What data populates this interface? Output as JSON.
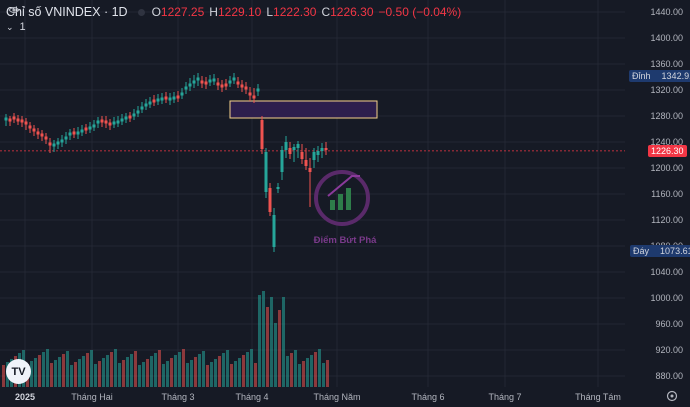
{
  "header": {
    "title": "Chỉ số VNINDEX · 1D",
    "open_label": "O",
    "open": "1227.25",
    "high_label": "H",
    "high": "1229.10",
    "low_label": "L",
    "low": "1222.30",
    "close_label": "C",
    "close": "1226.30",
    "change": "−0.50 (−0.04%)"
  },
  "indicator": {
    "label": "1"
  },
  "price_axis": {
    "ticks": [
      "1440.00",
      "1400.00",
      "1360.00",
      "1320.00",
      "1280.00",
      "1240.00",
      "1200.00",
      "1160.00",
      "1120.00",
      "1080.00",
      "1040.00",
      "1000.00",
      "960.00",
      "920.00",
      "880.00"
    ]
  },
  "labels": {
    "peak_label": "Đỉnh",
    "peak_value": "1342.91",
    "current_value": "1226.30",
    "bottom_label": "Đáy",
    "bottom_value": "1073.61"
  },
  "time_axis": {
    "ticks": [
      "2025",
      "Tháng Hai",
      "Tháng 3",
      "Tháng 4",
      "Tháng Năm",
      "Tháng 6",
      "Tháng 7",
      "Tháng Tám"
    ]
  },
  "watermark": {
    "text": "Điểm Bứt Phá"
  },
  "colors": {
    "up": "#26a69a",
    "down": "#ef5350",
    "bg": "#161a25",
    "grid": "#232733",
    "zone": "#2d1f4d",
    "zone_border": "#f5d28a"
  },
  "icons": {
    "visibility": "eye-icon",
    "settings": "gear-icon",
    "logo": "tradingview-logo-icon"
  }
}
